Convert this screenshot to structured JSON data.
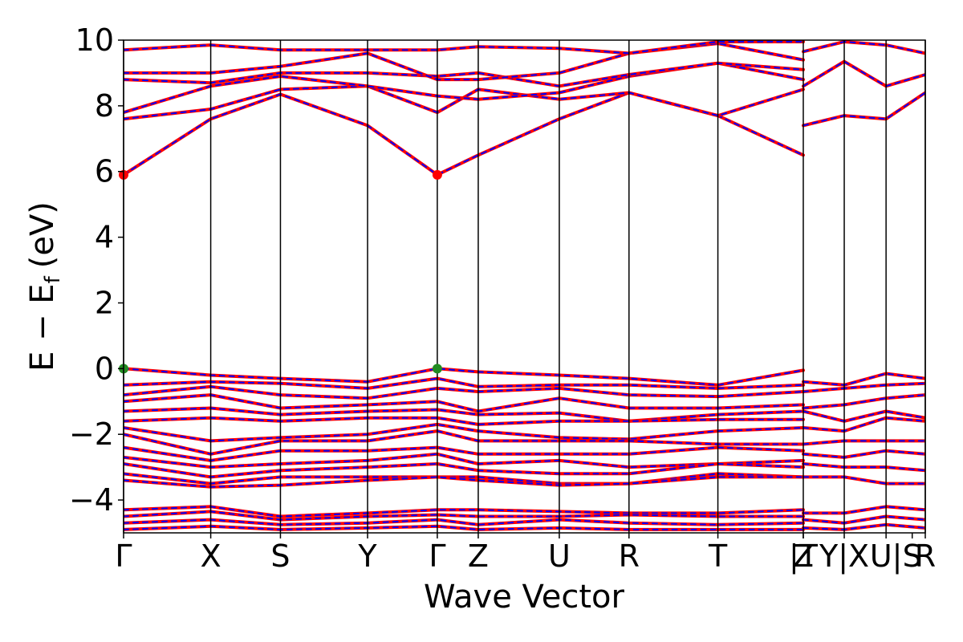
{
  "chart_data": {
    "type": "line",
    "title": "",
    "xlabel": "Wave Vector",
    "ylabel": "E − E",
    "ylabel_sub": "f",
    "ylabel_unit": "(eV)",
    "ylim": [
      -5,
      10
    ],
    "yticks": [
      -4,
      -2,
      0,
      2,
      4,
      6,
      8,
      10
    ],
    "ytick_labels": [
      "−4",
      "−2",
      "0",
      "2",
      "4",
      "6",
      "8",
      "10"
    ],
    "kpath": {
      "labels": [
        "Γ",
        "X",
        "S",
        "Y",
        "Γ",
        "Z",
        "U",
        "R",
        "T",
        "Z",
        "|T",
        "Y|X",
        "U|",
        "S",
        "R"
      ],
      "positions": [
        0,
        1.0,
        1.8,
        2.8,
        3.6,
        4.07,
        5.0,
        5.8,
        6.82,
        7.8,
        7.8,
        8.27,
        8.75,
        9.05,
        9.2
      ],
      "vlines": [
        0,
        1.0,
        1.8,
        2.8,
        3.6,
        4.07,
        5.0,
        5.8,
        6.82,
        7.8,
        8.27,
        8.75,
        9.2
      ]
    },
    "series": [
      {
        "color": "#ff0000",
        "width": 4,
        "dash": ""
      },
      {
        "color": "#0000ff",
        "width": 2,
        "dash": "6,6"
      }
    ],
    "markers": [
      {
        "x": 0,
        "y": 5.9,
        "color": "#ff0000"
      },
      {
        "x": 3.6,
        "y": 5.9,
        "color": "#ff0000"
      },
      {
        "x": 0,
        "y": 0.0,
        "color": "#228b22"
      },
      {
        "x": 3.6,
        "y": 0.0,
        "color": "#228b22"
      }
    ],
    "bands": [
      {
        "x": [
          0,
          1.0,
          1.8,
          2.8,
          3.6,
          4.07,
          5.0,
          5.8,
          6.82,
          7.8
        ],
        "y": [
          5.9,
          7.6,
          8.35,
          7.4,
          5.9,
          6.5,
          7.6,
          8.4,
          7.7,
          6.5
        ]
      },
      {
        "x": [
          0,
          1.0,
          1.8,
          2.8,
          3.6,
          4.07,
          5.0,
          5.8,
          6.82,
          7.8
        ],
        "y": [
          7.6,
          7.9,
          8.5,
          8.6,
          7.8,
          8.5,
          8.2,
          8.4,
          7.7,
          8.5
        ]
      },
      {
        "x": [
          0,
          1.0,
          1.8,
          2.8,
          3.6,
          4.07,
          5.0,
          5.8,
          6.82,
          7.8
        ],
        "y": [
          7.8,
          8.6,
          8.9,
          8.6,
          8.3,
          8.2,
          8.4,
          8.9,
          9.3,
          8.8
        ]
      },
      {
        "x": [
          0,
          1.0,
          1.8,
          2.8,
          3.6,
          4.07,
          5.0,
          5.8,
          6.82,
          7.8
        ],
        "y": [
          8.8,
          8.7,
          9.0,
          9.0,
          8.9,
          9.0,
          8.6,
          8.95,
          9.3,
          9.1
        ]
      },
      {
        "x": [
          0,
          1.0,
          1.8,
          2.8,
          3.6,
          4.07,
          5.0,
          5.8,
          6.82,
          7.8
        ],
        "y": [
          9.0,
          9.0,
          9.2,
          9.6,
          8.8,
          8.8,
          9.0,
          9.6,
          9.9,
          9.4
        ]
      },
      {
        "x": [
          0,
          1.0,
          1.8,
          2.8,
          3.6,
          4.07,
          5.0,
          5.8,
          6.82,
          7.8
        ],
        "y": [
          9.7,
          9.85,
          9.7,
          9.7,
          9.7,
          9.8,
          9.75,
          9.6,
          9.95,
          9.95
        ]
      },
      {
        "x": [
          7.8,
          8.27,
          8.75,
          9.2
        ],
        "y": [
          7.4,
          7.7,
          7.6,
          8.4
        ]
      },
      {
        "x": [
          7.8,
          8.27,
          8.75,
          9.2
        ],
        "y": [
          8.6,
          9.35,
          8.6,
          8.95
        ]
      },
      {
        "x": [
          7.8,
          8.27,
          8.75,
          9.2
        ],
        "y": [
          9.65,
          9.95,
          9.85,
          9.6
        ]
      },
      {
        "x": [
          0,
          1.0,
          1.8,
          2.8,
          3.6,
          4.07,
          5.0,
          5.8,
          6.82,
          7.8
        ],
        "y": [
          0.0,
          -0.2,
          -0.3,
          -0.4,
          0.0,
          -0.1,
          -0.2,
          -0.3,
          -0.5,
          -0.05
        ]
      },
      {
        "x": [
          0,
          1.0,
          1.8,
          2.8,
          3.6,
          4.07,
          5.0,
          5.8,
          6.82,
          7.8
        ],
        "y": [
          -0.5,
          -0.4,
          -0.45,
          -0.6,
          -0.3,
          -0.55,
          -0.5,
          -0.5,
          -0.6,
          -0.5
        ]
      },
      {
        "x": [
          0,
          1.0,
          1.8,
          2.8,
          3.6,
          4.07,
          5.0,
          5.8,
          6.82,
          7.8
        ],
        "y": [
          -0.8,
          -0.55,
          -0.8,
          -0.9,
          -0.6,
          -0.7,
          -0.6,
          -0.8,
          -0.85,
          -0.7
        ]
      },
      {
        "x": [
          0,
          1.0,
          1.8,
          2.8,
          3.6,
          4.07,
          5.0,
          5.8,
          6.82,
          7.8
        ],
        "y": [
          -1.0,
          -0.8,
          -1.2,
          -1.1,
          -1.0,
          -1.3,
          -0.9,
          -1.2,
          -1.2,
          -1.1
        ]
      },
      {
        "x": [
          0,
          1.0,
          1.8,
          2.8,
          3.6,
          4.07,
          5.0,
          5.8,
          6.82,
          7.8
        ],
        "y": [
          -1.3,
          -1.2,
          -1.4,
          -1.3,
          -1.25,
          -1.4,
          -1.35,
          -1.6,
          -1.4,
          -1.3
        ]
      },
      {
        "x": [
          0,
          1.0,
          1.8,
          2.8,
          3.6,
          4.07,
          5.0,
          5.8,
          6.82,
          7.8
        ],
        "y": [
          -1.6,
          -1.5,
          -1.6,
          -1.5,
          -1.5,
          -1.7,
          -1.6,
          -1.6,
          -1.55,
          -1.55
        ]
      },
      {
        "x": [
          0,
          1.0,
          1.8,
          2.8,
          3.6,
          4.07,
          5.0,
          5.8,
          6.82,
          7.8
        ],
        "y": [
          -1.8,
          -2.2,
          -2.1,
          -2.0,
          -1.7,
          -1.9,
          -2.1,
          -2.15,
          -1.9,
          -1.8
        ]
      },
      {
        "x": [
          0,
          1.0,
          1.8,
          2.8,
          3.6,
          4.07,
          5.0,
          5.8,
          6.82,
          7.8
        ],
        "y": [
          -2.0,
          -2.6,
          -2.2,
          -2.2,
          -1.9,
          -2.2,
          -2.2,
          -2.2,
          -2.3,
          -2.3
        ]
      },
      {
        "x": [
          0,
          1.0,
          1.8,
          2.8,
          3.6,
          4.07,
          5.0,
          5.8,
          6.82,
          7.8
        ],
        "y": [
          -2.4,
          -2.8,
          -2.5,
          -2.5,
          -2.4,
          -2.6,
          -2.6,
          -2.6,
          -2.4,
          -2.5
        ]
      },
      {
        "x": [
          0,
          1.0,
          1.8,
          2.8,
          3.6,
          4.07,
          5.0,
          5.8,
          6.82,
          7.8
        ],
        "y": [
          -2.7,
          -3.0,
          -2.9,
          -2.8,
          -2.6,
          -2.9,
          -2.8,
          -3.0,
          -2.9,
          -2.8
        ]
      },
      {
        "x": [
          0,
          1.0,
          1.8,
          2.8,
          3.6,
          4.07,
          5.0,
          5.8,
          6.82,
          7.8
        ],
        "y": [
          -2.9,
          -3.3,
          -3.1,
          -3.0,
          -2.9,
          -3.1,
          -3.2,
          -3.2,
          -2.9,
          -3.0
        ]
      },
      {
        "x": [
          0,
          1.0,
          1.8,
          2.8,
          3.6,
          4.07,
          5.0,
          5.8,
          6.82,
          7.8
        ],
        "y": [
          -3.2,
          -3.5,
          -3.3,
          -3.3,
          -3.3,
          -3.3,
          -3.5,
          -3.5,
          -3.2,
          -3.3
        ]
      },
      {
        "x": [
          0,
          1.0,
          1.8,
          2.8,
          3.6,
          4.07,
          5.0,
          5.8,
          6.82,
          7.8
        ],
        "y": [
          -3.4,
          -3.6,
          -3.55,
          -3.4,
          -3.3,
          -3.4,
          -3.55,
          -3.5,
          -3.3,
          -3.3
        ]
      },
      {
        "x": [
          7.8,
          8.27,
          8.75,
          9.2
        ],
        "y": [
          -0.4,
          -0.5,
          -0.15,
          -0.3
        ]
      },
      {
        "x": [
          7.8,
          8.27,
          8.75,
          9.2
        ],
        "y": [
          -0.7,
          -0.6,
          -0.5,
          -0.45
        ]
      },
      {
        "x": [
          7.8,
          8.27,
          8.75,
          9.2
        ],
        "y": [
          -1.2,
          -1.1,
          -0.9,
          -0.8
        ]
      },
      {
        "x": [
          7.8,
          8.27,
          8.75,
          9.2
        ],
        "y": [
          -1.3,
          -1.6,
          -1.3,
          -1.5
        ]
      },
      {
        "x": [
          7.8,
          8.27,
          8.75,
          9.2
        ],
        "y": [
          -1.8,
          -1.9,
          -1.5,
          -1.6
        ]
      },
      {
        "x": [
          7.8,
          8.27,
          8.75,
          9.2
        ],
        "y": [
          -2.3,
          -2.2,
          -2.2,
          -2.2
        ]
      },
      {
        "x": [
          7.8,
          8.27,
          8.75,
          9.2
        ],
        "y": [
          -2.6,
          -2.7,
          -2.5,
          -2.6
        ]
      },
      {
        "x": [
          7.8,
          8.27,
          8.75,
          9.2
        ],
        "y": [
          -2.9,
          -3.0,
          -3.0,
          -3.1
        ]
      },
      {
        "x": [
          7.8,
          8.27,
          8.75,
          9.2
        ],
        "y": [
          -3.3,
          -3.3,
          -3.5,
          -3.5
        ]
      },
      {
        "x": [
          0,
          1.0,
          1.8,
          2.8,
          3.6,
          4.07,
          5.0,
          5.8,
          6.82,
          7.8
        ],
        "y": [
          -4.3,
          -4.2,
          -4.5,
          -4.4,
          -4.3,
          -4.3,
          -4.35,
          -4.4,
          -4.4,
          -4.3
        ]
      },
      {
        "x": [
          0,
          1.0,
          1.8,
          2.8,
          3.6,
          4.07,
          5.0,
          5.8,
          6.82,
          7.8
        ],
        "y": [
          -4.5,
          -4.35,
          -4.6,
          -4.5,
          -4.45,
          -4.5,
          -4.5,
          -4.45,
          -4.5,
          -4.5
        ]
      },
      {
        "x": [
          0,
          1.0,
          1.8,
          2.8,
          3.6,
          4.07,
          5.0,
          5.8,
          6.82,
          7.8
        ],
        "y": [
          -4.7,
          -4.6,
          -4.75,
          -4.7,
          -4.6,
          -4.75,
          -4.6,
          -4.7,
          -4.75,
          -4.7
        ]
      },
      {
        "x": [
          0,
          1.0,
          1.8,
          2.8,
          3.6,
          4.07,
          5.0,
          5.8,
          6.82,
          7.8
        ],
        "y": [
          -4.9,
          -4.8,
          -4.9,
          -4.85,
          -4.8,
          -4.9,
          -4.85,
          -4.9,
          -4.9,
          -4.9
        ]
      },
      {
        "x": [
          7.8,
          8.27,
          8.75,
          9.2
        ],
        "y": [
          -4.4,
          -4.4,
          -4.2,
          -4.3
        ]
      },
      {
        "x": [
          7.8,
          8.27,
          8.75,
          9.2
        ],
        "y": [
          -4.6,
          -4.7,
          -4.5,
          -4.6
        ]
      },
      {
        "x": [
          7.8,
          8.27,
          8.75,
          9.2
        ],
        "y": [
          -4.85,
          -4.9,
          -4.75,
          -4.85
        ]
      }
    ]
  }
}
